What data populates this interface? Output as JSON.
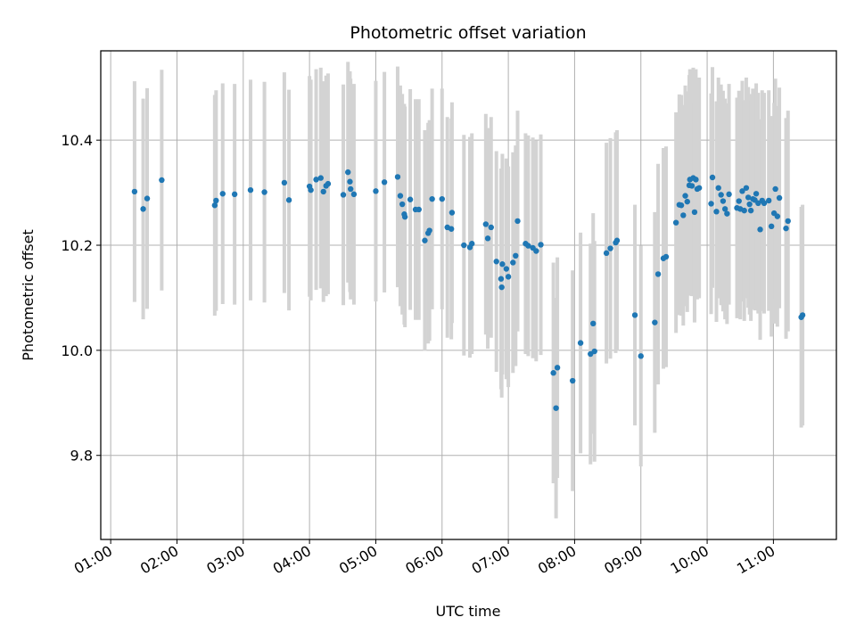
{
  "chart_data": {
    "type": "scatter",
    "title": "Photometric offset variation",
    "xlabel": "UTC time",
    "ylabel": "Photometric offset",
    "xlim": [
      0.85,
      11.95
    ],
    "ylim": [
      9.64,
      10.57
    ],
    "grid": true,
    "x_ticks": [
      1,
      2,
      3,
      4,
      5,
      6,
      7,
      8,
      9,
      10,
      11
    ],
    "x_tick_labels": [
      "01:00",
      "02:00",
      "03:00",
      "04:00",
      "05:00",
      "06:00",
      "07:00",
      "08:00",
      "09:00",
      "10:00",
      "11:00"
    ],
    "y_ticks": [
      9.8,
      10.0,
      10.2,
      10.4
    ],
    "y_tick_labels": [
      "9.8",
      "10.0",
      "10.2",
      "10.4"
    ],
    "colors": {
      "point": "#1f77b4",
      "errorbar": "#d3d3d3",
      "grid": "#b0b0b0",
      "axes": "#000000"
    },
    "series": [
      {
        "name": "Photometric offset",
        "error": 0.21,
        "points": [
          [
            1.36,
            10.302
          ],
          [
            1.49,
            10.269
          ],
          [
            1.55,
            10.289
          ],
          [
            1.77,
            10.324
          ],
          [
            2.57,
            10.276
          ],
          [
            2.59,
            10.285
          ],
          [
            2.69,
            10.298
          ],
          [
            2.87,
            10.297
          ],
          [
            3.11,
            10.305
          ],
          [
            3.32,
            10.301
          ],
          [
            3.62,
            10.319
          ],
          [
            3.69,
            10.286
          ],
          [
            4.0,
            10.312
          ],
          [
            4.02,
            10.305
          ],
          [
            4.1,
            10.325
          ],
          [
            4.17,
            10.328
          ],
          [
            4.21,
            10.302
          ],
          [
            4.25,
            10.313
          ],
          [
            4.28,
            10.317
          ],
          [
            4.51,
            10.296
          ],
          [
            4.58,
            10.339
          ],
          [
            4.61,
            10.321
          ],
          [
            4.62,
            10.307
          ],
          [
            4.67,
            10.297
          ],
          [
            5.0,
            10.303
          ],
          [
            5.13,
            10.32
          ],
          [
            5.33,
            10.33
          ],
          [
            5.37,
            10.294
          ],
          [
            5.4,
            10.278
          ],
          [
            5.43,
            10.259
          ],
          [
            5.44,
            10.254
          ],
          [
            5.52,
            10.287
          ],
          [
            5.6,
            10.268
          ],
          [
            5.65,
            10.268
          ],
          [
            5.74,
            10.209
          ],
          [
            5.79,
            10.223
          ],
          [
            5.81,
            10.228
          ],
          [
            5.85,
            10.288
          ],
          [
            6.0,
            10.288
          ],
          [
            6.08,
            10.234
          ],
          [
            6.14,
            10.231
          ],
          [
            6.15,
            10.262
          ],
          [
            6.33,
            10.2
          ],
          [
            6.42,
            10.196
          ],
          [
            6.45,
            10.203
          ],
          [
            6.66,
            10.24
          ],
          [
            6.69,
            10.213
          ],
          [
            6.74,
            10.234
          ],
          [
            6.82,
            10.169
          ],
          [
            6.89,
            10.136
          ],
          [
            6.9,
            10.12
          ],
          [
            6.91,
            10.164
          ],
          [
            6.97,
            10.155
          ],
          [
            7.0,
            10.14
          ],
          [
            7.07,
            10.167
          ],
          [
            7.11,
            10.18
          ],
          [
            7.14,
            10.246
          ],
          [
            7.26,
            10.203
          ],
          [
            7.3,
            10.199
          ],
          [
            7.37,
            10.195
          ],
          [
            7.42,
            10.189
          ],
          [
            7.49,
            10.201
          ],
          [
            7.68,
            9.957
          ],
          [
            7.72,
            9.89
          ],
          [
            7.74,
            9.967
          ],
          [
            7.97,
            9.942
          ],
          [
            8.09,
            10.014
          ],
          [
            8.24,
            9.993
          ],
          [
            8.28,
            10.051
          ],
          [
            8.3,
            9.998
          ],
          [
            8.48,
            10.185
          ],
          [
            8.54,
            10.194
          ],
          [
            8.62,
            10.205
          ],
          [
            8.64,
            10.209
          ],
          [
            8.91,
            10.067
          ],
          [
            9.0,
            9.989
          ],
          [
            9.21,
            10.053
          ],
          [
            9.26,
            10.145
          ],
          [
            9.34,
            10.175
          ],
          [
            9.38,
            10.178
          ],
          [
            9.53,
            10.243
          ],
          [
            9.58,
            10.277
          ],
          [
            9.61,
            10.276
          ],
          [
            9.64,
            10.257
          ],
          [
            9.67,
            10.294
          ],
          [
            9.7,
            10.283
          ],
          [
            9.73,
            10.314
          ],
          [
            9.74,
            10.325
          ],
          [
            9.77,
            10.313
          ],
          [
            9.79,
            10.328
          ],
          [
            9.81,
            10.263
          ],
          [
            9.83,
            10.325
          ],
          [
            9.85,
            10.307
          ],
          [
            9.88,
            10.309
          ],
          [
            10.06,
            10.279
          ],
          [
            10.08,
            10.329
          ],
          [
            10.14,
            10.264
          ],
          [
            10.17,
            10.309
          ],
          [
            10.21,
            10.296
          ],
          [
            10.24,
            10.284
          ],
          [
            10.27,
            10.269
          ],
          [
            10.3,
            10.26
          ],
          [
            10.33,
            10.297
          ],
          [
            10.45,
            10.271
          ],
          [
            10.48,
            10.284
          ],
          [
            10.5,
            10.269
          ],
          [
            10.53,
            10.303
          ],
          [
            10.56,
            10.266
          ],
          [
            10.59,
            10.309
          ],
          [
            10.62,
            10.291
          ],
          [
            10.64,
            10.278
          ],
          [
            10.66,
            10.266
          ],
          [
            10.69,
            10.288
          ],
          [
            10.72,
            10.286
          ],
          [
            10.74,
            10.298
          ],
          [
            10.77,
            10.28
          ],
          [
            10.8,
            10.23
          ],
          [
            10.83,
            10.285
          ],
          [
            10.86,
            10.28
          ],
          [
            10.93,
            10.285
          ],
          [
            10.97,
            10.236
          ],
          [
            11.01,
            10.261
          ],
          [
            11.03,
            10.307
          ],
          [
            11.06,
            10.255
          ],
          [
            11.09,
            10.29
          ],
          [
            11.19,
            10.232
          ],
          [
            11.22,
            10.246
          ],
          [
            11.42,
            10.063
          ],
          [
            11.44,
            10.067
          ]
        ]
      }
    ]
  }
}
